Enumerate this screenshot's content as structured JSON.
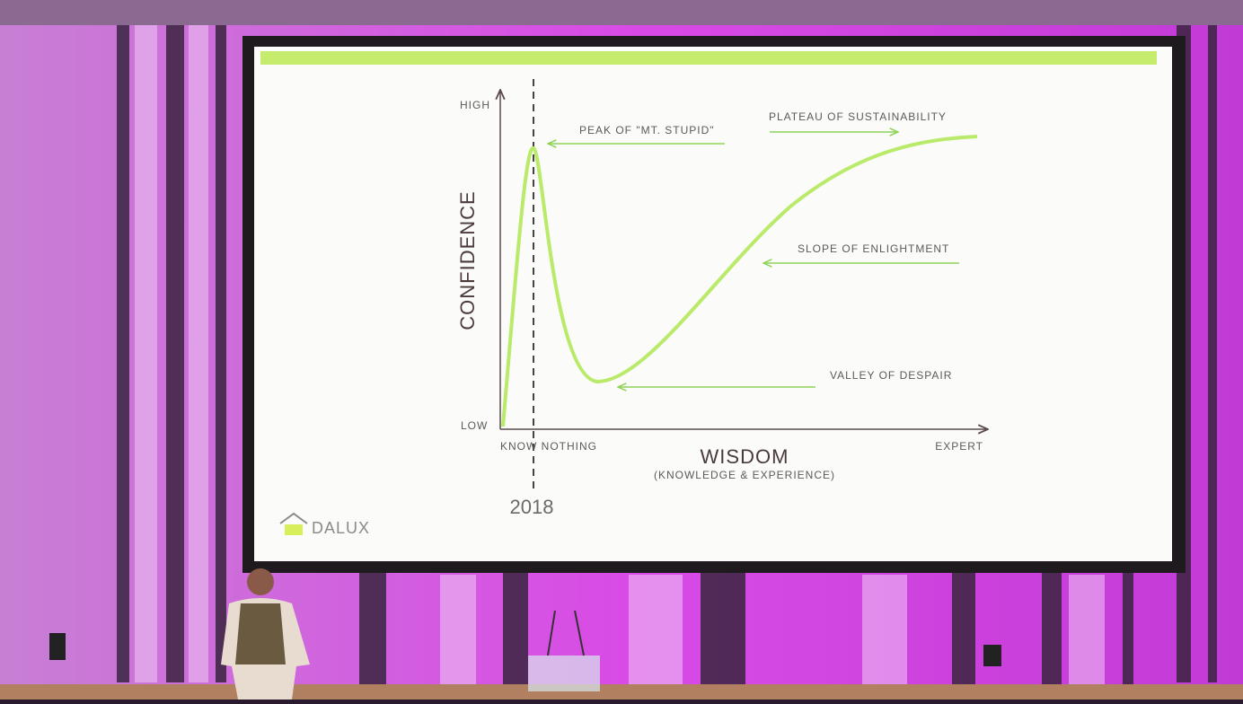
{
  "slide": {
    "y_axis_label": "CONFIDENCE",
    "y_high": "HIGH",
    "y_low": "LOW",
    "x_axis_label": "WISDOM",
    "x_axis_sublabel": "(KNOWLEDGE & EXPERIENCE)",
    "x_start": "KNOW NOTHING",
    "x_end": "EXPERT",
    "annotations": [
      "PEAK OF \"MT. STUPID\"",
      "PLATEAU OF SUSTAINABILITY",
      "SLOPE OF ENLIGHTMENT",
      "VALLEY OF DESPAIR"
    ],
    "marker_label": "2018",
    "logo": "DALUX"
  }
}
